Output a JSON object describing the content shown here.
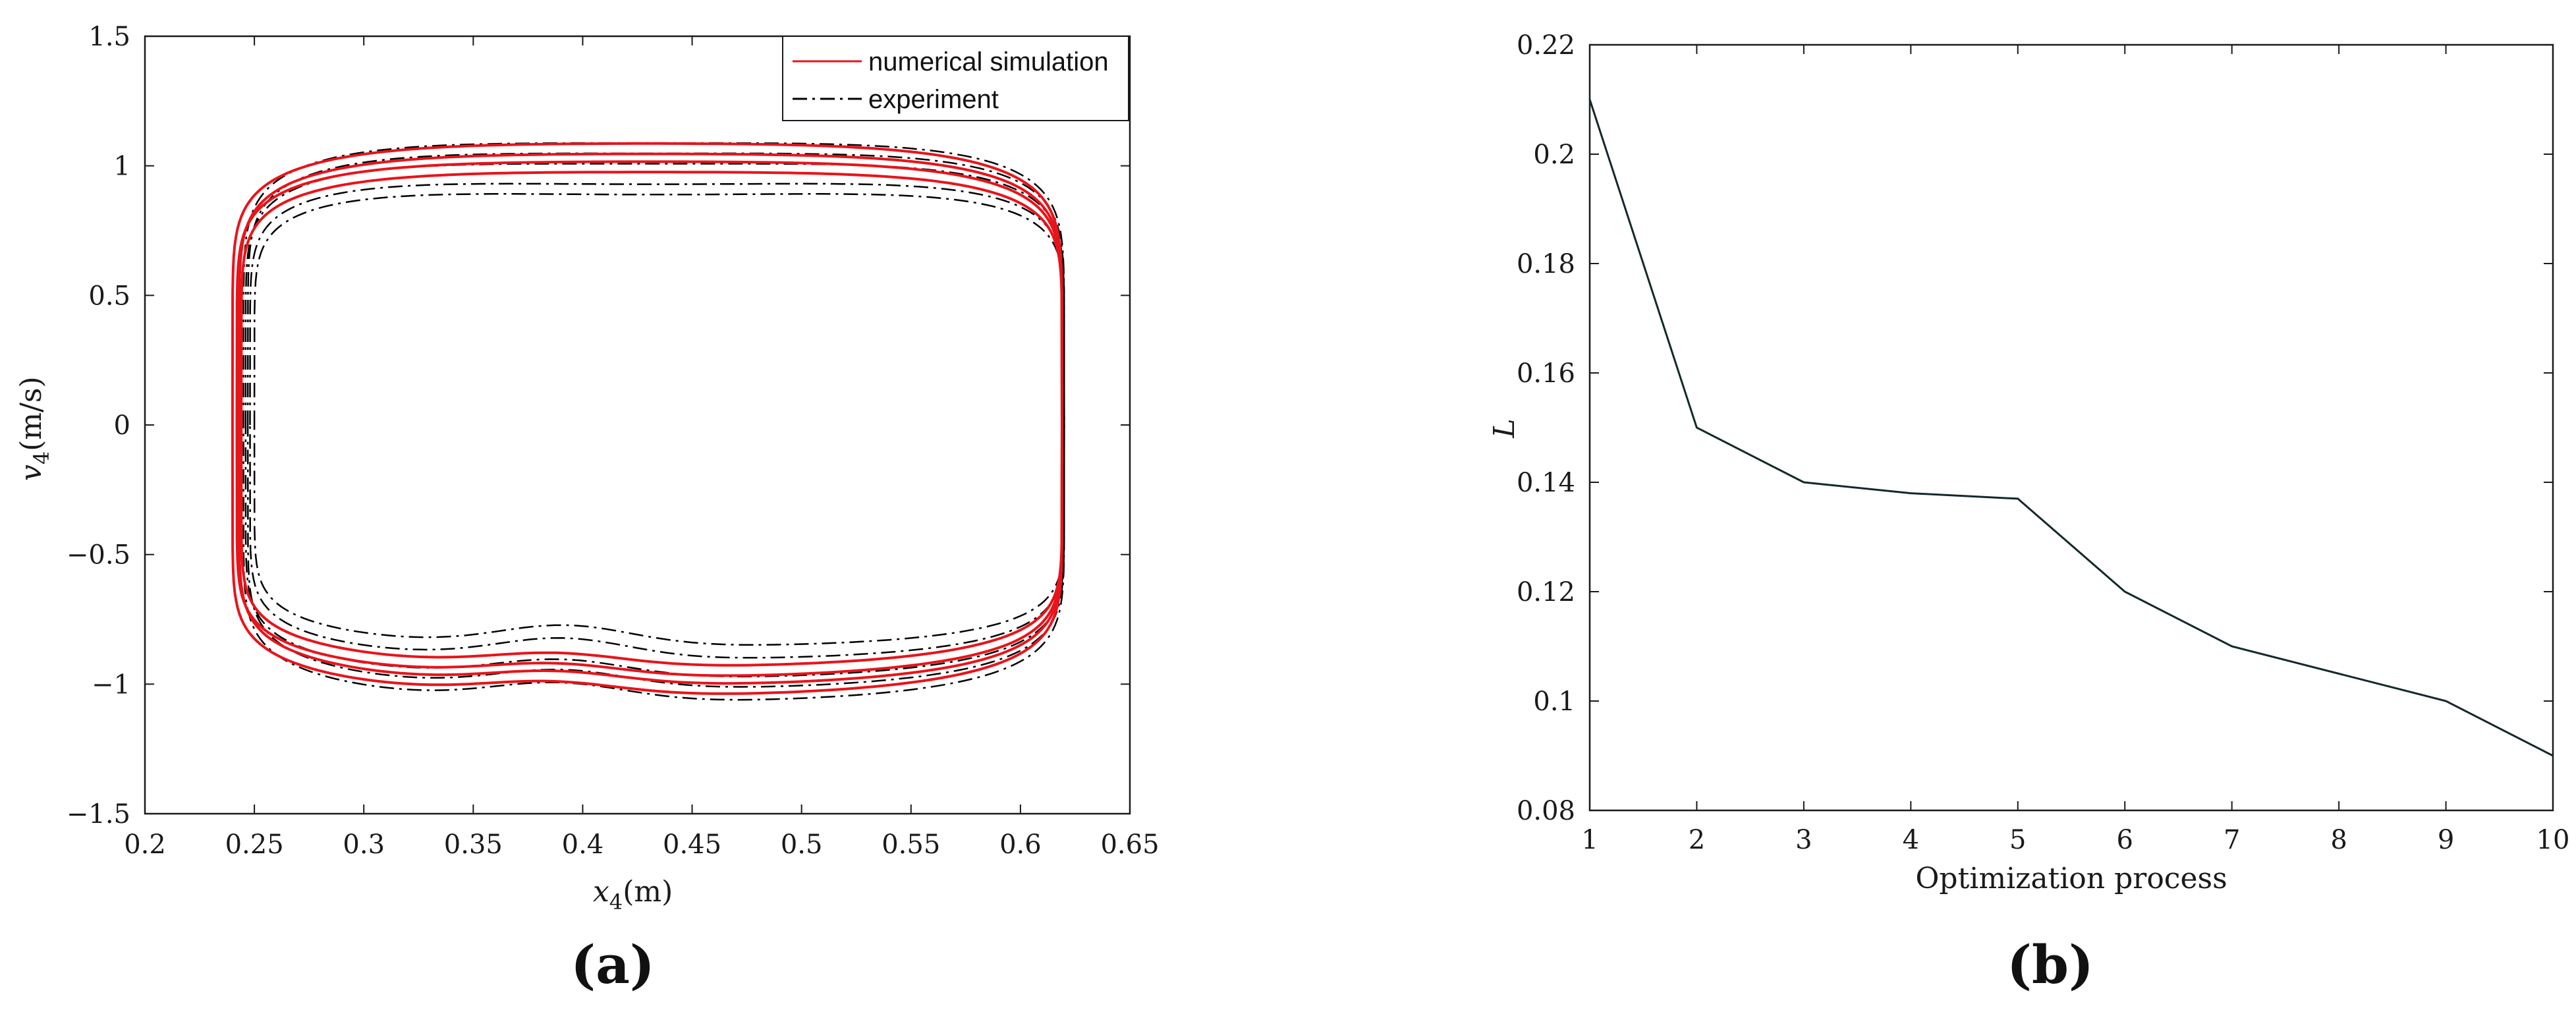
{
  "chart_data": [
    {
      "panel_label": "(a)",
      "type": "line",
      "xlabel": {
        "var": "x",
        "sub": "4",
        "unit": "(m)"
      },
      "ylabel": {
        "var": "v",
        "sub": "4",
        "unit": "(m/s)"
      },
      "xlim": [
        0.2,
        0.65
      ],
      "ylim": [
        -1.5,
        1.5
      ],
      "xticks": [
        "0.2",
        "0.25",
        "0.3",
        "0.35",
        "0.4",
        "0.45",
        "0.5",
        "0.55",
        "0.6",
        "0.65"
      ],
      "yticks": [
        "1.5",
        "1",
        "0.5",
        "0",
        "−0.5",
        "−1",
        "−1.5"
      ],
      "legend": {
        "placement": "top-right",
        "entries": [
          {
            "label": "numerical simulation",
            "color": "#e8141b",
            "style": "solid"
          },
          {
            "label": "experiment",
            "color": "#000000",
            "style": "dashdot"
          }
        ]
      },
      "series": [
        {
          "name": "numerical simulation",
          "color": "#e8141b",
          "style": "solid",
          "loops": [
            {
              "xmin": 0.24,
              "xmax": 0.619,
              "vtop": 1.14,
              "vbot": -1.06,
              "sag": 0.06,
              "bump": 0.05
            },
            {
              "xmin": 0.242,
              "xmax": 0.619,
              "vtop": 1.07,
              "vbot": -0.99,
              "sag": 0.06,
              "bump": 0.05
            },
            {
              "xmin": 0.244,
              "xmax": 0.619,
              "vtop": 1.03,
              "vbot": -0.95,
              "sag": 0.06,
              "bump": 0.05
            },
            {
              "xmin": 0.243,
              "xmax": 0.619,
              "vtop": 1.1,
              "vbot": -1.02,
              "sag": 0.06,
              "bump": 0.05
            }
          ]
        },
        {
          "name": "experiment",
          "color": "#000000",
          "style": "dashdot",
          "loops": [
            {
              "xmin": 0.245,
              "xmax": 0.62,
              "vtop": 1.16,
              "vbot": -1.09,
              "sag": 0.08,
              "bump": 0.07
            },
            {
              "xmin": 0.246,
              "xmax": 0.62,
              "vtop": 1.08,
              "vbot": -1.0,
              "sag": 0.08,
              "bump": 0.07
            },
            {
              "xmin": 0.248,
              "xmax": 0.62,
              "vtop": 1.01,
              "vbot": -0.93,
              "sag": 0.09,
              "bump": 0.08
            },
            {
              "xmin": 0.25,
              "xmax": 0.62,
              "vtop": 0.97,
              "vbot": -0.88,
              "sag": 0.09,
              "bump": 0.08
            },
            {
              "xmin": 0.247,
              "xmax": 0.62,
              "vtop": 1.12,
              "vbot": -1.04,
              "sag": 0.08,
              "bump": 0.07
            }
          ]
        }
      ]
    },
    {
      "panel_label": "(b)",
      "type": "line",
      "xlabel": "Optimization process",
      "ylabel": "L",
      "xlim": [
        1,
        10
      ],
      "ylim": [
        0.08,
        0.22
      ],
      "xticks": [
        "1",
        "2",
        "3",
        "4",
        "5",
        "6",
        "7",
        "8",
        "9",
        "10"
      ],
      "yticks": [
        "0.22",
        "0.2",
        "0.18",
        "0.16",
        "0.14",
        "0.12",
        "0.1",
        "0.08"
      ],
      "x": [
        1,
        2,
        3,
        4,
        5,
        6,
        7,
        8,
        9,
        10
      ],
      "series": [
        {
          "color": "#14282a",
          "values": [
            0.21,
            0.15,
            0.14,
            0.138,
            0.137,
            0.12,
            0.11,
            0.105,
            0.1,
            0.09
          ]
        }
      ]
    }
  ]
}
